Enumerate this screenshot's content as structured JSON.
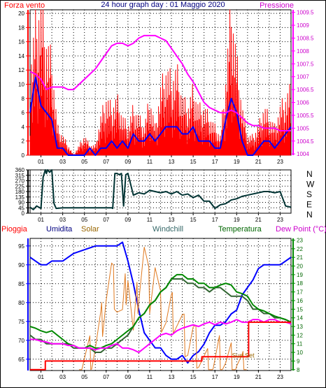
{
  "header": {
    "left_label": "Forza vento",
    "title": "24 hour graph day : 01 Maggio 2020",
    "right_label": "Pressione"
  },
  "bottom_header": {
    "labels": [
      "Pioggia",
      "Umidita",
      "Solar",
      "Windchill",
      "Temperatura",
      "Dew Point (°C)"
    ],
    "sun_set_label": "Sun Set"
  },
  "colors": {
    "wind_speed": "#ff0000",
    "wind_gust_avg": "#0000ff",
    "pressure": "#ff00ff",
    "direction": "#003333",
    "rain": "#ff0000",
    "humidity": "#0000ff",
    "solar": "#e07a20",
    "windchill": "#336633",
    "temperature": "#008800",
    "dewpoint": "#ff00ff",
    "red_label": "#ff0000",
    "blue_label": "#000080",
    "green_label": "#006600",
    "solar_label": "#996600",
    "windchill_label": "#336666",
    "magenta_label": "#cc00cc"
  },
  "chart_data": [
    {
      "type": "line",
      "name_key": "wind_pressure",
      "x_ticks": [
        "01",
        "03",
        "05",
        "07",
        "09",
        "11",
        "13",
        "15",
        "17",
        "19",
        "21",
        "23"
      ],
      "xlim": [
        0,
        24
      ],
      "left_axis": {
        "ticks": [
          0,
          2,
          4,
          6,
          8,
          10,
          12,
          14,
          16,
          18,
          20
        ],
        "ylim": [
          0,
          20.5
        ]
      },
      "right_axis": {
        "ticks": [
          "1004",
          "1004.5",
          "1005",
          "1005.5",
          "1006",
          "1006.5",
          "1007",
          "1007.5",
          "1008",
          "1008.5",
          "1009",
          "1009.5"
        ],
        "ylim": [
          1003.95,
          1009.6
        ]
      },
      "series": [
        {
          "key": "wind_speed",
          "axis": "left",
          "style": "spiky",
          "x": [
            0,
            0.5,
            1,
            1.5,
            2,
            2.5,
            3,
            3.5,
            4,
            4.5,
            5,
            5.5,
            6,
            6.5,
            7,
            7.5,
            8,
            8.5,
            9,
            9.5,
            10,
            10.5,
            11,
            11.5,
            12,
            12.5,
            13,
            13.5,
            14,
            14.5,
            15,
            15.5,
            16,
            16.5,
            17,
            17.5,
            18,
            18.5,
            19,
            19.5,
            20,
            20.5,
            21,
            21.5,
            22,
            22.5,
            23,
            23.5,
            24
          ],
          "y": [
            9,
            14,
            16,
            12,
            10,
            3,
            2,
            1,
            0,
            1,
            2,
            1,
            1,
            4,
            6,
            5,
            6,
            4,
            3,
            5,
            4,
            3,
            6,
            3,
            7,
            9,
            8,
            9,
            6,
            5,
            7,
            5,
            5,
            4,
            3,
            2,
            8,
            16,
            10,
            5,
            2,
            2,
            3,
            5,
            4,
            3,
            5,
            6,
            7
          ]
        },
        {
          "key": "wind_gust_avg",
          "axis": "left",
          "x": [
            0,
            0.5,
            1,
            1.5,
            2,
            2.5,
            3,
            3.5,
            4,
            4.5,
            5,
            5.5,
            6,
            6.5,
            7,
            7.5,
            8,
            8.5,
            9,
            9.5,
            10,
            10.5,
            11,
            11.5,
            12,
            12.5,
            13,
            13.5,
            14,
            14.5,
            15,
            15.5,
            16,
            16.5,
            17,
            17.5,
            18,
            18.5,
            19,
            19.5,
            20,
            20.5,
            21,
            21.5,
            22,
            22.5,
            23,
            23.5,
            24
          ],
          "y": [
            6,
            11,
            7,
            6,
            5,
            1,
            1,
            0,
            0,
            0,
            0,
            1,
            0,
            1,
            1,
            2,
            1,
            2,
            1,
            3,
            2,
            2,
            3,
            2,
            3,
            4,
            4,
            4,
            3,
            3,
            4,
            2,
            2,
            2,
            1,
            1,
            5,
            8,
            6,
            2,
            0,
            0,
            1,
            2,
            2,
            1,
            2,
            3,
            4
          ]
        },
        {
          "key": "pressure",
          "axis": "right",
          "x": [
            0,
            0.5,
            1,
            1.5,
            2,
            2.5,
            3,
            3.5,
            4,
            4.5,
            5,
            5.5,
            6,
            6.5,
            7,
            7.5,
            8,
            8.5,
            9,
            9.5,
            10,
            10.5,
            11,
            11.5,
            12,
            12.5,
            13,
            13.5,
            14,
            14.5,
            15,
            15.5,
            16,
            16.5,
            17,
            17.5,
            18,
            18.5,
            19,
            19.5,
            20,
            20.5,
            21,
            21.5,
            22,
            22.5,
            23,
            23.5,
            24
          ],
          "y": [
            1007.2,
            1007.1,
            1006.9,
            1006.5,
            1006.6,
            1006.6,
            1006.6,
            1006.5,
            1006.5,
            1006.7,
            1006.9,
            1007.1,
            1007.3,
            1007.6,
            1007.9,
            1008.2,
            1008.3,
            1008.3,
            1008.2,
            1008.3,
            1008.5,
            1008.6,
            1008.6,
            1008.6,
            1008.5,
            1008.4,
            1008.1,
            1007.8,
            1007.5,
            1007.1,
            1006.8,
            1006.4,
            1006.0,
            1005.8,
            1005.7,
            1005.6,
            1005.6,
            1005.7,
            1005.6,
            1005.4,
            1005.2,
            1005.1,
            1005.1,
            1005.0,
            1005.0,
            1005.0,
            1004.9,
            1004.9,
            1004.9
          ]
        }
      ]
    },
    {
      "type": "line",
      "name_key": "wind_direction",
      "x_ticks": [
        "01",
        "03",
        "05",
        "07",
        "09",
        "11",
        "13",
        "15",
        "17",
        "19",
        "21",
        "23"
      ],
      "xlim": [
        0,
        24
      ],
      "left_axis": {
        "ticks": [
          0,
          45,
          90,
          135,
          180,
          225,
          270,
          315,
          360
        ],
        "ylim": [
          0,
          360
        ]
      },
      "right_axis": {
        "ticks": [
          "N",
          "W",
          "S",
          "E",
          "N"
        ]
      },
      "series": [
        {
          "key": "direction",
          "axis": "left",
          "x": [
            0,
            0.3,
            0.6,
            1,
            1.2,
            1.4,
            1.5,
            1.6,
            1.8,
            2,
            2.2,
            2.4,
            3,
            4,
            5,
            6,
            7,
            7.5,
            7.6,
            7.8,
            8,
            8.2,
            8.4,
            8.6,
            8.8,
            9,
            9.5,
            10,
            10.5,
            11,
            11.5,
            12,
            12.5,
            13,
            13.5,
            14,
            14.5,
            15,
            15.5,
            16,
            16.5,
            17,
            17.5,
            18,
            18.5,
            19,
            19.5,
            20,
            20.5,
            21,
            21.5,
            22,
            22.5,
            23,
            23.5,
            24
          ],
          "y": [
            50,
            30,
            60,
            40,
            300,
            360,
            330,
            360,
            340,
            360,
            80,
            40,
            45,
            45,
            45,
            45,
            45,
            45,
            40,
            330,
            330,
            320,
            330,
            60,
            320,
            330,
            150,
            170,
            160,
            190,
            180,
            170,
            180,
            160,
            180,
            150,
            160,
            130,
            150,
            100,
            100,
            40,
            70,
            80,
            110,
            120,
            140,
            150,
            160,
            170,
            180,
            180,
            170,
            180,
            60,
            50
          ]
        }
      ]
    },
    {
      "type": "line",
      "name_key": "temp_hum",
      "x_ticks": [
        "01",
        "03",
        "05",
        "07",
        "09",
        "11",
        "13",
        "15",
        "17",
        "19",
        "21",
        "23"
      ],
      "xlim": [
        0,
        24
      ],
      "left_axis": {
        "ticks": [
          65,
          70,
          75,
          80,
          85,
          90,
          95
        ],
        "ylim": [
          62,
          97
        ]
      },
      "right_axis": {
        "ticks": [
          8,
          9,
          10,
          11,
          12,
          13,
          14,
          15,
          16,
          17,
          18,
          19,
          20,
          21,
          22,
          23
        ],
        "ylim": [
          7.9,
          23.2
        ]
      },
      "series": [
        {
          "key": "humidity",
          "axis": "left",
          "x": [
            0,
            0.5,
            1,
            1.5,
            2,
            3,
            4,
            5,
            6,
            6.5,
            7,
            7.5,
            8,
            8.5,
            9,
            9.5,
            10,
            10.5,
            11,
            11.5,
            12,
            12.5,
            13,
            13.5,
            14,
            14.5,
            15,
            15.5,
            16,
            16.5,
            17,
            17.5,
            18,
            18.5,
            19,
            19.5,
            20,
            20.5,
            21,
            21.5,
            22,
            22.5,
            23,
            23.5,
            24
          ],
          "y": [
            92,
            91,
            90,
            90,
            91,
            91,
            93,
            94,
            95,
            95,
            95,
            95,
            95,
            96,
            91,
            85,
            78,
            72,
            70,
            68,
            68,
            66,
            65,
            65,
            66,
            64,
            66,
            67,
            69,
            72,
            74,
            74,
            75,
            77,
            78,
            82,
            84,
            86,
            89,
            90,
            90,
            90,
            90,
            91,
            92
          ]
        },
        {
          "key": "solar",
          "axis": "right",
          "style": "noisy",
          "x": [
            4.5,
            5,
            5.5,
            6,
            6.5,
            7,
            7.5,
            8,
            8.5,
            9,
            9.5,
            10,
            10.5,
            11,
            11.5,
            12,
            12.5,
            13,
            13.5,
            14,
            14.5,
            15,
            15.5,
            16,
            16.5,
            17,
            17.5,
            18,
            18.5,
            19,
            19.5,
            20
          ],
          "y": [
            9,
            9.5,
            9.8,
            11,
            13,
            17,
            19,
            16,
            14,
            20,
            12,
            18,
            22,
            17,
            20,
            15,
            14,
            15,
            14,
            13,
            11,
            12,
            10,
            9,
            8,
            9,
            10,
            9,
            9,
            9,
            8,
            8
          ]
        },
        {
          "key": "windchill",
          "axis": "right",
          "x": [
            0,
            0.5,
            1,
            1.5,
            2,
            2.5,
            3,
            3.5,
            4,
            4.5,
            5,
            5.5,
            6,
            6.5,
            7,
            7.5,
            8,
            8.5,
            9,
            9.5,
            10,
            10.5,
            11,
            11.5,
            12,
            12.5,
            13,
            13.5,
            14,
            14.5,
            15,
            15.5,
            16,
            16.5,
            17,
            17.5,
            18,
            18.5,
            19,
            19.5,
            20,
            20.5,
            21,
            21.5,
            22,
            22.5,
            23,
            23.5,
            24
          ],
          "y": [
            12,
            11.5,
            11.5,
            11,
            11,
            11,
            11,
            11,
            10.5,
            10.5,
            10.5,
            10.5,
            10,
            10,
            10.5,
            10.5,
            11,
            11.5,
            12,
            13,
            14,
            14.5,
            15.5,
            16,
            17,
            17.5,
            18.5,
            18.5,
            18.5,
            18,
            18,
            17.5,
            17.5,
            17,
            17.5,
            17.5,
            17,
            16.5,
            16.5,
            16.5,
            16,
            15,
            15,
            14.5,
            14.5,
            14,
            14,
            13.8,
            13.5
          ]
        },
        {
          "key": "temperature",
          "axis": "right",
          "x": [
            0,
            0.5,
            1,
            1.5,
            2,
            2.5,
            3,
            3.5,
            4,
            4.5,
            5,
            5.5,
            6,
            6.5,
            7,
            7.5,
            8,
            8.5,
            9,
            9.5,
            10,
            10.5,
            11,
            11.5,
            12,
            12.5,
            13,
            13.5,
            14,
            14.5,
            15,
            15.5,
            16,
            16.5,
            17,
            17.5,
            18,
            18.5,
            19,
            19.5,
            20,
            20.5,
            21,
            21.5,
            22,
            22.5,
            23,
            23.5,
            24
          ],
          "y": [
            13,
            12.8,
            12.5,
            12.3,
            12.5,
            12,
            11.5,
            11,
            10.8,
            10.5,
            10.5,
            10.8,
            10.5,
            10.5,
            10.8,
            11,
            11.5,
            12,
            12.5,
            13,
            14,
            14.5,
            15.5,
            16,
            17,
            17.5,
            18.5,
            19,
            19,
            18.5,
            18.5,
            18,
            18,
            17.5,
            17.5,
            17.8,
            18,
            17.8,
            17,
            16.8,
            16.5,
            15.5,
            15,
            14.8,
            14.5,
            14.2,
            14,
            13.8,
            13.5
          ]
        },
        {
          "key": "dewpoint",
          "axis": "right",
          "x": [
            0,
            0.5,
            1,
            1.5,
            2,
            2.5,
            3,
            3.5,
            4,
            4.5,
            5,
            5.5,
            6,
            6.5,
            7,
            7.5,
            8,
            8.5,
            9,
            9.5,
            10,
            10.5,
            11,
            11.5,
            12,
            12.5,
            13,
            13.5,
            14,
            14.5,
            15,
            15.5,
            16,
            16.5,
            17,
            17.5,
            18,
            18.5,
            19,
            19.5,
            20,
            20.5,
            21,
            21.5,
            22,
            22.5,
            23,
            23.5,
            24
          ],
          "y": [
            11.5,
            11.5,
            11.3,
            11.2,
            11,
            11,
            11,
            10.8,
            10.8,
            10.5,
            10.5,
            10.5,
            10.3,
            10.5,
            10.5,
            10.8,
            11,
            10.5,
            10.5,
            10.3,
            10,
            10.5,
            11,
            11.5,
            12,
            12.2,
            12,
            12.5,
            12.8,
            13,
            13.2,
            13,
            13.3,
            13.5,
            13.2,
            13.5,
            13.3,
            13.5,
            13.8,
            13.5,
            13.5,
            13.8,
            13.8,
            13.5,
            13.8,
            13.8,
            13.5,
            13.5,
            13.3
          ]
        },
        {
          "key": "rain",
          "axis": "right",
          "style": "step",
          "x": [
            0,
            0.8,
            1.4,
            6.2,
            15.8,
            19.8,
            20.1,
            24
          ],
          "y": [
            8,
            8,
            9,
            9,
            9.5,
            9.5,
            13.5,
            13.5
          ]
        }
      ]
    }
  ]
}
